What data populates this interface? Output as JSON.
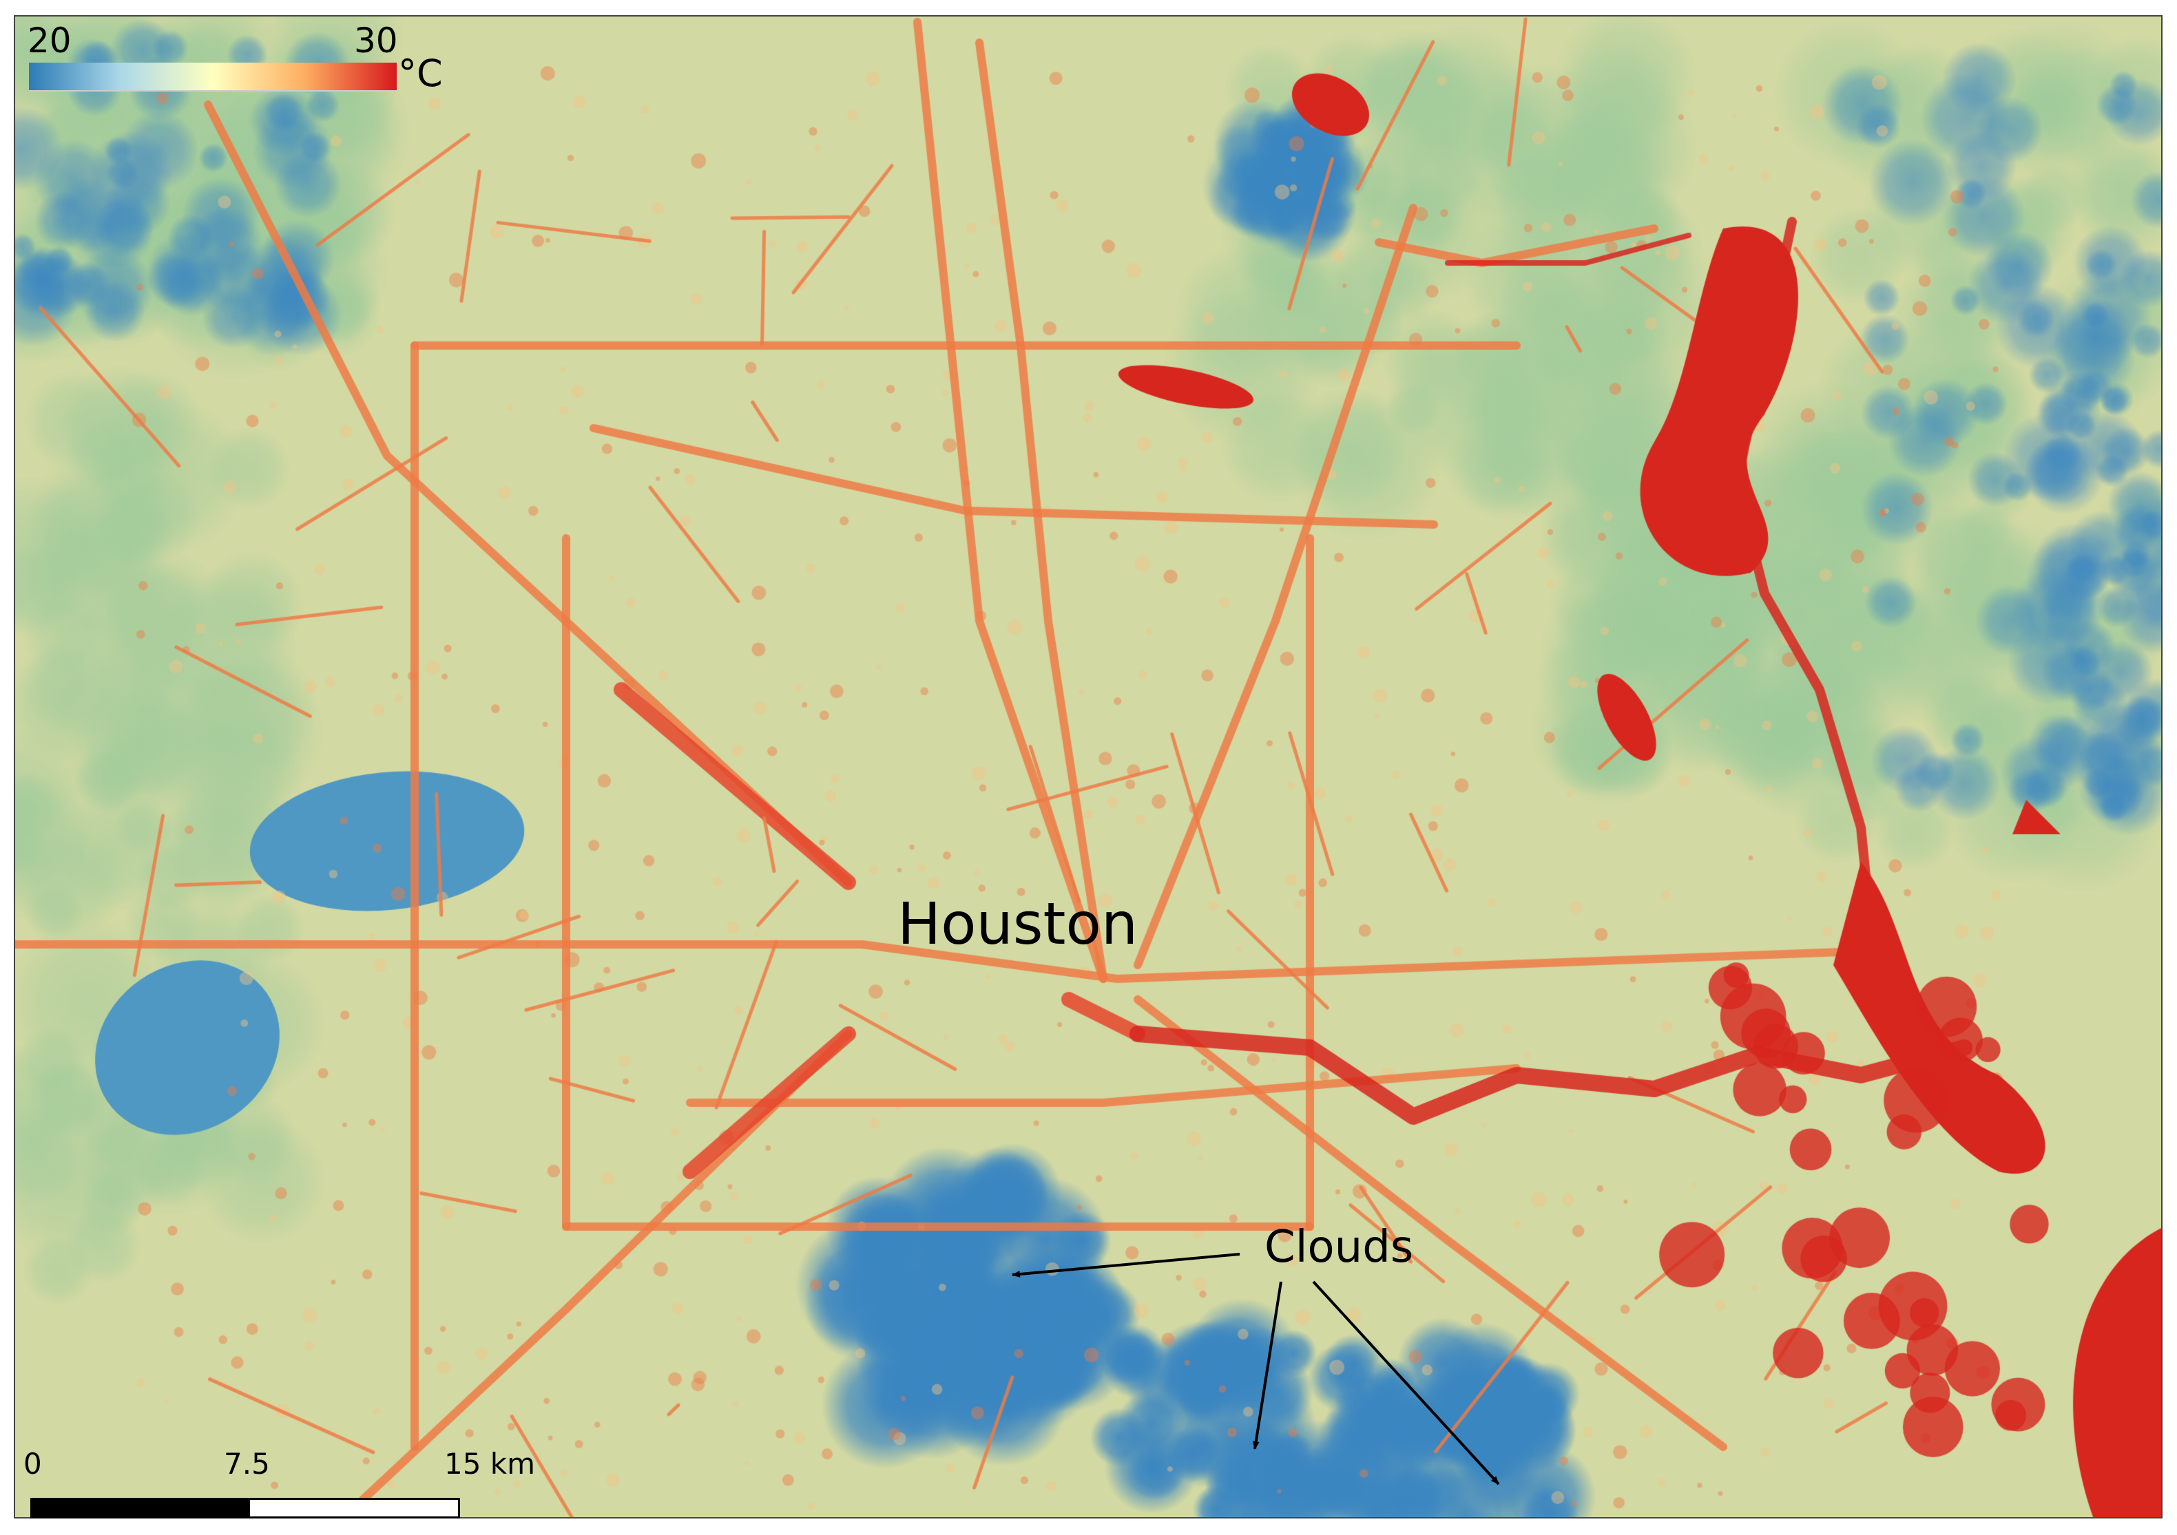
{
  "legend": {
    "min_label": "20",
    "max_label": "30",
    "unit": "°C",
    "colormap": [
      "#2c7bb6",
      "#abd9e9",
      "#ffffbf",
      "#fdae61",
      "#d7191c"
    ]
  },
  "labels": {
    "city": "Houston",
    "clouds": "Clouds"
  },
  "scale_bar": {
    "tick_0": "0",
    "tick_mid": "7.5",
    "tick_end": "15 km"
  },
  "colors": {
    "base": "#d2d9a3",
    "cool": "#3a86c2",
    "green": "#9fcb9b",
    "hot": "#d7261e",
    "warm": "#ef7a45"
  }
}
